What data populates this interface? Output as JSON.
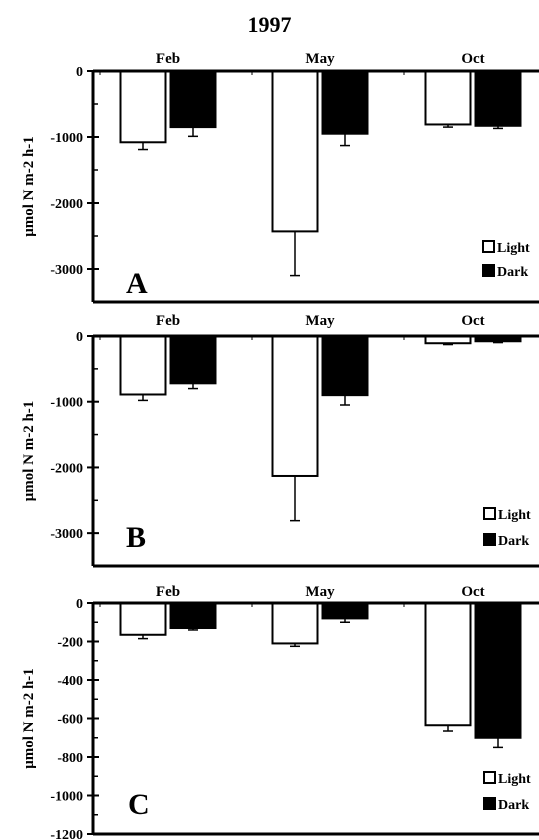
{
  "figure": {
    "title": "1997"
  },
  "colors": {
    "light_fill": "#ffffff",
    "dark_fill": "#000000",
    "stroke": "#000000"
  },
  "chart_data": [
    {
      "type": "bar",
      "panel_letter": "A",
      "categories": [
        "Feb",
        "May",
        "Oct"
      ],
      "ylabel": "μmol N m-2 h-1",
      "ylim": [
        -3500,
        0
      ],
      "yticks": [
        0,
        -1000,
        -2000,
        -3000
      ],
      "yminor_step": 500,
      "legend_position": "bottom-right",
      "series": [
        {
          "name": "Light",
          "values": [
            -1080,
            -2430,
            -810
          ],
          "errors": [
            110,
            670,
            40
          ],
          "color": "#ffffff"
        },
        {
          "name": "Dark",
          "values": [
            -850,
            -950,
            -830
          ],
          "errors": [
            140,
            180,
            40
          ],
          "color": "#000000"
        }
      ]
    },
    {
      "type": "bar",
      "panel_letter": "B",
      "categories": [
        "Feb",
        "May",
        "Oct"
      ],
      "ylabel": "μmol N m-2 h-1",
      "ylim": [
        -3500,
        0
      ],
      "yticks": [
        0,
        -1000,
        -2000,
        -3000
      ],
      "yminor_step": 500,
      "legend_position": "bottom-right",
      "series": [
        {
          "name": "Light",
          "values": [
            -890,
            -2130,
            -110
          ],
          "errors": [
            90,
            680,
            20
          ],
          "color": "#ffffff"
        },
        {
          "name": "Dark",
          "values": [
            -720,
            -900,
            -80
          ],
          "errors": [
            80,
            150,
            20
          ],
          "color": "#000000"
        }
      ]
    },
    {
      "type": "bar",
      "panel_letter": "C",
      "categories": [
        "Feb",
        "May",
        "Oct"
      ],
      "ylabel": "μmol N m-2 h-1",
      "ylim": [
        -1200,
        0
      ],
      "yticks": [
        0,
        -200,
        -400,
        -600,
        -800,
        -1000,
        -1200
      ],
      "yminor_step": 100,
      "legend_position": "bottom-right",
      "series": [
        {
          "name": "Light",
          "values": [
            -165,
            -210,
            -635
          ],
          "errors": [
            20,
            15,
            30
          ],
          "color": "#ffffff"
        },
        {
          "name": "Dark",
          "values": [
            -130,
            -80,
            -700
          ],
          "errors": [
            10,
            20,
            50
          ],
          "color": "#000000"
        }
      ]
    }
  ]
}
